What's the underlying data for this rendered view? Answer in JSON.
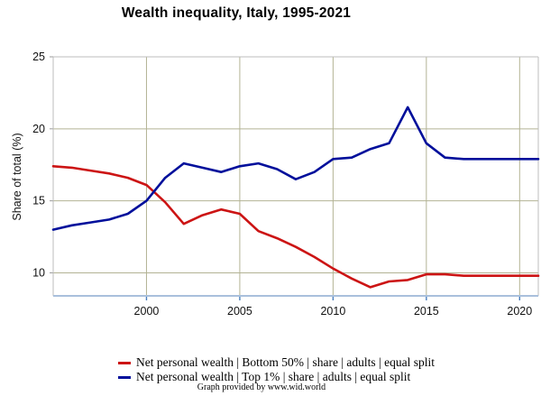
{
  "page": {
    "title": "Wealth inequality, Italy, 1995-2021",
    "footer": "Graph provided by www.wid.world"
  },
  "colors": {
    "bottom50_line": "#cc1414",
    "top1_line": "#000f9b",
    "gridline": "#b3b394",
    "plot_border": "#bdbdbd",
    "x_axis_line": "#a9c0dc",
    "x_tick_mark": "#4a7fbe",
    "y_tick_mark": "#9a9a9a",
    "plot_bg": "#ffffff",
    "text": "#111111"
  },
  "chart_data": {
    "type": "line",
    "title": "Wealth inequality, Italy, 1995-2021",
    "xlabel": "",
    "ylabel": "Share of total (%)",
    "xlim": [
      1995,
      2021
    ],
    "ylim": [
      8.4,
      25
    ],
    "x_ticks": [
      2000,
      2005,
      2010,
      2015,
      2020
    ],
    "y_ticks": [
      10,
      15,
      20,
      25
    ],
    "grid": true,
    "legend_position": "bottom",
    "x": [
      1995,
      1996,
      1997,
      1998,
      1999,
      2000,
      2001,
      2002,
      2003,
      2004,
      2005,
      2006,
      2007,
      2008,
      2009,
      2010,
      2011,
      2012,
      2013,
      2014,
      2015,
      2016,
      2017,
      2018,
      2019,
      2020,
      2021
    ],
    "series": [
      {
        "name": "Net personal wealth | Bottom 50% | share | adults | equal split",
        "color": "#cc1414",
        "values": [
          17.4,
          17.3,
          17.1,
          16.9,
          16.6,
          16.1,
          14.9,
          13.4,
          14.0,
          14.4,
          14.1,
          12.9,
          12.4,
          11.8,
          11.1,
          10.3,
          9.6,
          9.0,
          9.4,
          9.5,
          9.9,
          9.9,
          9.8,
          9.8,
          9.8,
          9.8,
          9.8
        ]
      },
      {
        "name": "Net personal wealth | Top 1% | share | adults | equal split",
        "color": "#000f9b",
        "values": [
          13.0,
          13.3,
          13.5,
          13.7,
          14.1,
          15.0,
          16.6,
          17.6,
          17.3,
          17.0,
          17.4,
          17.6,
          17.2,
          16.5,
          17.0,
          17.9,
          18.0,
          18.6,
          19.0,
          21.5,
          19.0,
          18.0,
          17.9,
          17.9,
          17.9,
          17.9,
          17.9
        ]
      }
    ]
  }
}
